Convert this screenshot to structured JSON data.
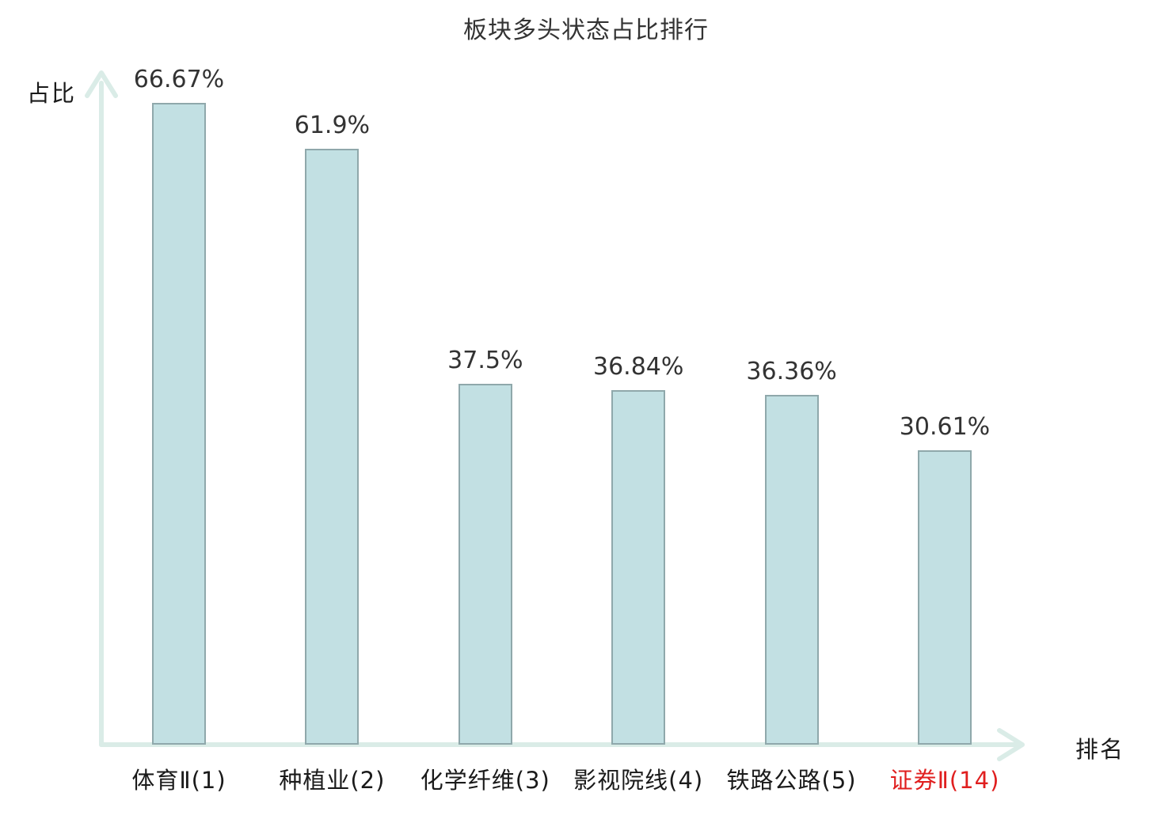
{
  "chart_data": {
    "type": "bar",
    "title": "板块多头状态占比排行",
    "xlabel": "排名",
    "ylabel": "占比",
    "categories": [
      "体育Ⅱ(1)",
      "种植业(2)",
      "化学纤维(3)",
      "影视院线(4)",
      "铁路公路(5)",
      "证券Ⅱ(14)"
    ],
    "values": [
      66.67,
      61.9,
      37.5,
      36.84,
      36.36,
      30.61
    ],
    "value_labels": [
      "66.67%",
      "61.9%",
      "37.5%",
      "36.84%",
      "36.36%",
      "30.61%"
    ],
    "highlight_index": 5,
    "colors": {
      "bar_fill": "#c2e0e3",
      "bar_border": "#8fa8ab",
      "axis": "#daece7",
      "text": "#333333",
      "highlight_text": "#e01f1f"
    },
    "ylim": [
      0,
      70
    ],
    "grid": false,
    "legend": "none",
    "value_label_position": "above-bar",
    "orientation": "vertical"
  }
}
